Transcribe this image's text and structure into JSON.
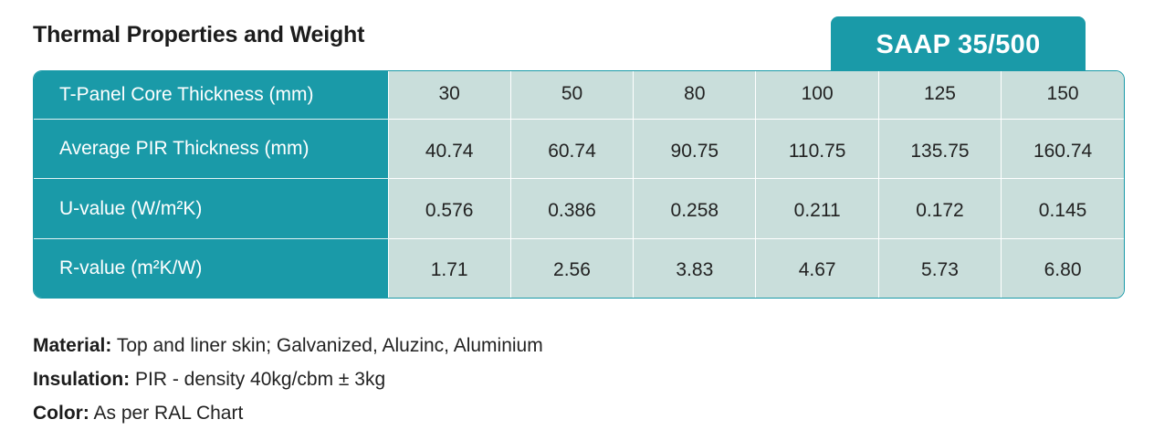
{
  "title": "Thermal Properties and Weight",
  "product_tab": "SAAP 35/500",
  "table": {
    "rows": [
      {
        "label": "T-Panel Core Thickness (mm)",
        "values": [
          "30",
          "50",
          "80",
          "100",
          "125",
          "150"
        ]
      },
      {
        "label": "Average PIR Thickness (mm)",
        "values": [
          "40.74",
          "60.74",
          "90.75",
          "110.75",
          "135.75",
          "160.74"
        ]
      },
      {
        "label": "U-value (W/m²K)",
        "values": [
          "0.576",
          "0.386",
          "0.258",
          "0.211",
          "0.172",
          "0.145"
        ]
      },
      {
        "label": "R-value (m²K/W)",
        "values": [
          "1.71",
          "2.56",
          "3.83",
          "4.67",
          "5.73",
          "6.80"
        ]
      }
    ]
  },
  "notes": [
    {
      "label": "Material:",
      "text": " Top and liner skin; Galvanized, Aluzinc, Aluminium"
    },
    {
      "label": "Insulation:",
      "text": " PIR - density 40kg/cbm ± 3kg"
    },
    {
      "label": "Color:",
      "text": " As per RAL Chart"
    }
  ],
  "colors": {
    "accent": "#1a9aa8",
    "cell_background": "#c9dedb"
  }
}
